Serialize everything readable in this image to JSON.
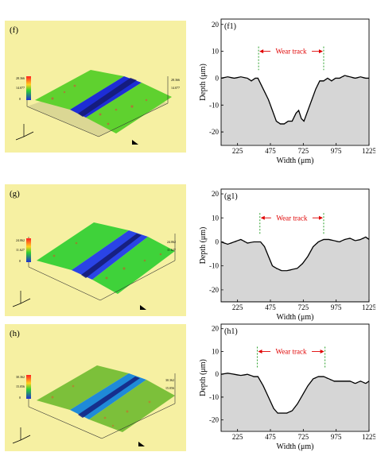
{
  "panels": [
    {
      "label": "(f)",
      "scale": {
        "max": "28.366",
        "mid": "14.077",
        "zero": "0"
      },
      "profile": {
        "label": "(f1)",
        "wear_label": "Wear track",
        "xlabel": "Width (μm)",
        "ylabel": "Depth (μm)",
        "xticks": [
          "225",
          "475",
          "725",
          "975",
          "1225"
        ],
        "yticks": [
          "20",
          "10",
          "0",
          "-10",
          "-20"
        ]
      }
    },
    {
      "label": "(g)",
      "scale": {
        "max": "24.062",
        "mid": "11.627",
        "zero": "0"
      },
      "profile": {
        "label": "(g1)",
        "wear_label": "Wear track",
        "xlabel": "Width (μm)",
        "ylabel": "Depth (μm)",
        "xticks": [
          "225",
          "475",
          "725",
          "975",
          "1225"
        ],
        "yticks": [
          "20",
          "10",
          "0",
          "-10",
          "-20"
        ]
      }
    },
    {
      "label": "(h)",
      "scale": {
        "max": "30.362",
        "mid": "15.056",
        "zero": "0"
      },
      "profile": {
        "label": "(h1)",
        "wear_label": "Wear track",
        "xlabel": "Width (μm)",
        "ylabel": "Depth (μm)",
        "xticks": [
          "225",
          "475",
          "725",
          "975",
          "1225"
        ],
        "yticks": [
          "20",
          "10",
          "0",
          "-10",
          "-20"
        ]
      }
    }
  ],
  "chart_data": [
    {
      "type": "area",
      "title": "(f1)",
      "xlabel": "Width (μm)",
      "ylabel": "Depth (μm)",
      "xlim": [
        100,
        1225
      ],
      "ylim": [
        -25,
        22
      ],
      "wear_track": [
        385,
        880
      ],
      "x": [
        100,
        150,
        200,
        250,
        300,
        330,
        360,
        380,
        400,
        430,
        460,
        490,
        520,
        550,
        580,
        610,
        640,
        670,
        690,
        710,
        730,
        760,
        790,
        820,
        850,
        880,
        910,
        940,
        970,
        1000,
        1040,
        1080,
        1120,
        1160,
        1200,
        1225
      ],
      "y": [
        0,
        0.5,
        0,
        0.5,
        0,
        -1,
        0,
        0,
        -2,
        -5,
        -8,
        -12,
        -16,
        -17,
        -17,
        -16,
        -16,
        -13,
        -12,
        -15,
        -16,
        -12,
        -8,
        -4,
        -1,
        -1,
        0,
        -1,
        0,
        0,
        1,
        0.5,
        0,
        0.5,
        0,
        0
      ]
    },
    {
      "type": "area",
      "title": "(g1)",
      "xlabel": "Width (μm)",
      "ylabel": "Depth (μm)",
      "xlim": [
        100,
        1225
      ],
      "ylim": [
        -25,
        22
      ],
      "wear_track": [
        395,
        880
      ],
      "x": [
        100,
        150,
        200,
        250,
        300,
        350,
        400,
        430,
        460,
        490,
        520,
        560,
        600,
        640,
        680,
        720,
        760,
        800,
        840,
        880,
        920,
        960,
        1000,
        1040,
        1080,
        1120,
        1160,
        1200,
        1225
      ],
      "y": [
        0,
        -1,
        0,
        1,
        -0.5,
        0,
        0,
        -2,
        -6,
        -10,
        -11,
        -12,
        -12,
        -11.5,
        -11,
        -9,
        -6,
        -2,
        0,
        1,
        1,
        0.5,
        0,
        1,
        1.5,
        0.5,
        1,
        2,
        1
      ]
    },
    {
      "type": "area",
      "title": "(h1)",
      "xlabel": "Width (μm)",
      "ylabel": "Depth (μm)",
      "xlim": [
        100,
        1225
      ],
      "ylim": [
        -25,
        22
      ],
      "wear_track": [
        375,
        890
      ],
      "x": [
        100,
        150,
        200,
        250,
        300,
        350,
        380,
        420,
        460,
        500,
        530,
        560,
        600,
        640,
        680,
        720,
        760,
        800,
        840,
        880,
        920,
        960,
        1000,
        1040,
        1080,
        1120,
        1160,
        1200,
        1225
      ],
      "y": [
        0,
        0.5,
        0,
        -0.5,
        0,
        -1,
        -1,
        -5,
        -10,
        -15,
        -17,
        -17,
        -17,
        -16,
        -13,
        -9,
        -5,
        -2,
        -1,
        -1,
        -2,
        -3,
        -3,
        -3,
        -3,
        -4,
        -3,
        -4,
        -3
      ]
    }
  ]
}
